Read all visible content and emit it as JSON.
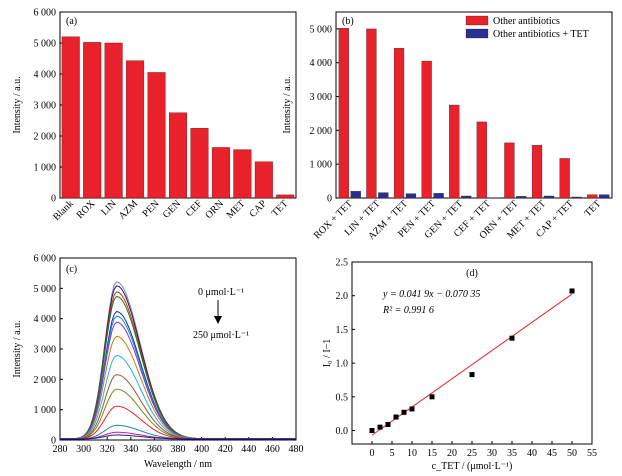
{
  "chart_data": [
    {
      "panel": "(a)",
      "type": "bar",
      "ylabel": "Intensity / a.u.",
      "ylim": [
        0,
        6000
      ],
      "yticks": [
        "0",
        "1 000",
        "2 000",
        "3 000",
        "4 000",
        "5 000",
        "6 000"
      ],
      "categories": [
        "Blank",
        "ROX",
        "LIN",
        "AZM",
        "PEN",
        "GEN",
        "CEF",
        "ORN",
        "MET",
        "CAP",
        "TET"
      ],
      "values": [
        5200,
        5020,
        5000,
        4430,
        4050,
        2750,
        2250,
        1630,
        1560,
        1170,
        100
      ],
      "color": "#e8212a"
    },
    {
      "panel": "(b)",
      "type": "bar",
      "ylabel": "Intensity / a.u.",
      "ylim": [
        0,
        5500
      ],
      "yticks": [
        "0",
        "1 000",
        "2 000",
        "3 000",
        "4 000",
        "5 000"
      ],
      "categories": [
        "ROX + TET",
        "LIN + TET",
        "AZM + TET",
        "PEN + TET",
        "GEN + TET",
        "CEF + TET",
        "ORN + TET",
        "MET + TET",
        "CAP + TET",
        "TET"
      ],
      "series": [
        {
          "name": "Other antibiotics",
          "color": "#e8212a",
          "values": [
            5020,
            5000,
            4430,
            4050,
            2750,
            2250,
            1630,
            1560,
            1170,
            100
          ]
        },
        {
          "name": "Other antibiotics + TET",
          "color": "#2b2f8f",
          "values": [
            200,
            160,
            130,
            140,
            60,
            10,
            50,
            60,
            30,
            100
          ]
        }
      ],
      "legend": "top-right"
    },
    {
      "panel": "(c)",
      "type": "line",
      "xlabel": "Wavelength / nm",
      "ylabel": "Intensity / a.u.",
      "xlim": [
        280,
        480
      ],
      "ylim": [
        0,
        6000
      ],
      "xticks": [
        "280",
        "300",
        "320",
        "340",
        "360",
        "380",
        "400",
        "420",
        "440",
        "460",
        "480"
      ],
      "yticks": [
        "0",
        "1 000",
        "2 000",
        "3 000",
        "4 000",
        "5 000",
        "6 000"
      ],
      "peak_wavelength": 328,
      "peak_intensities": [
        5180,
        5050,
        4850,
        4700,
        4200,
        4050,
        3850,
        3380,
        2750,
        2120,
        1640,
        1080,
        450,
        220,
        130
      ],
      "colors": [
        "#7f7fff",
        "#222222",
        "#e82323",
        "#1a7a1a",
        "#2020cc",
        "#00a0a0",
        "#8a2be2",
        "#c08000",
        "#20b0ff",
        "#a0522d",
        "#6b8e23",
        "#e82323",
        "#1a8a9a",
        "#cc1a8a",
        "#1a1a9a"
      ],
      "annotation_top": "0 μmol·L⁻¹",
      "annotation_bottom": "250 μmol·L⁻¹"
    },
    {
      "panel": "(d)",
      "type": "scatter",
      "xlabel": "c_TET / (μmol·L⁻¹)",
      "ylabel": "I₀ / I−1",
      "xlim": [
        -5,
        55
      ],
      "ylim": [
        -0.2,
        2.5
      ],
      "xticks": [
        "0",
        "5",
        "10",
        "15",
        "20",
        "25",
        "30",
        "35",
        "40",
        "45",
        "50",
        "55"
      ],
      "yticks": [
        "0.0",
        "0.5",
        "1.0",
        "1.5",
        "2.0",
        "2.5"
      ],
      "x": [
        0,
        2,
        4,
        6,
        8,
        10,
        15,
        25,
        35,
        50
      ],
      "y": [
        0.0,
        0.05,
        0.09,
        0.2,
        0.27,
        0.32,
        0.5,
        0.83,
        1.37,
        2.07
      ],
      "fit": {
        "slope": 0.0419,
        "intercept": -0.07035,
        "x_range": [
          0,
          50
        ],
        "color": "#e82323"
      },
      "equation": "y = 0.041 9x − 0.070 35",
      "r2": "R² = 0.991 6"
    }
  ]
}
